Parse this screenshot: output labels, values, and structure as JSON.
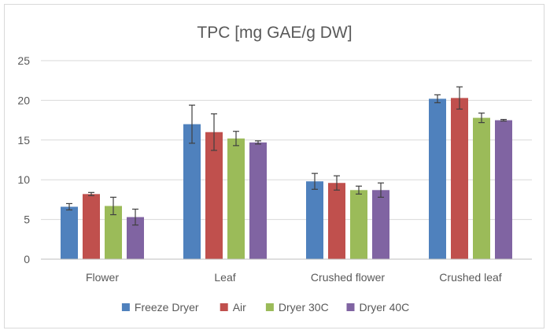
{
  "chart_data": {
    "type": "bar",
    "title": "TPC [mg GAE/g DW]",
    "categories": [
      "Flower",
      "Leaf",
      "Crushed flower",
      "Crushed leaf"
    ],
    "ylim": [
      0,
      25
    ],
    "yticks": [
      0,
      5,
      10,
      15,
      20,
      25
    ],
    "grid": true,
    "legend_position": "bottom",
    "error_bars": true,
    "series": [
      {
        "name": "Freeze Dryer",
        "color": "#4f81bd",
        "values": [
          6.6,
          17.0,
          9.8,
          20.2
        ],
        "errors": [
          0.4,
          2.4,
          1.0,
          0.5
        ]
      },
      {
        "name": "Air",
        "color": "#c0504d",
        "values": [
          8.2,
          16.0,
          9.6,
          20.3
        ],
        "errors": [
          0.2,
          2.3,
          0.9,
          1.4
        ]
      },
      {
        "name": "Dryer 30C",
        "color": "#9bbb59",
        "values": [
          6.7,
          15.2,
          8.7,
          17.8
        ],
        "errors": [
          1.1,
          0.9,
          0.5,
          0.6
        ]
      },
      {
        "name": "Dryer 40C",
        "color": "#8064a2",
        "values": [
          5.3,
          14.7,
          8.7,
          17.5
        ],
        "errors": [
          1.0,
          0.2,
          0.9,
          0.1
        ]
      }
    ]
  }
}
